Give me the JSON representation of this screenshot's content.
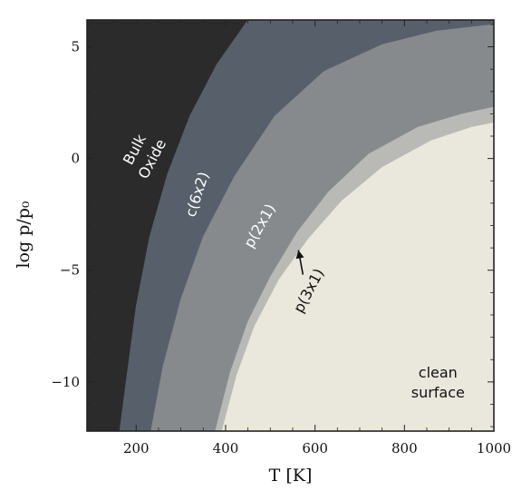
{
  "chart_data": {
    "type": "phase-diagram",
    "title": "",
    "xlabel": "T [K]",
    "ylabel": "log p/p₀",
    "xlim": [
      90,
      1000
    ],
    "ylim": [
      -12.2,
      6.2
    ],
    "x_ticks": [
      200,
      400,
      600,
      800,
      1000
    ],
    "y_ticks": [
      5,
      0,
      -5,
      -10
    ],
    "y_tick_labels": [
      "5",
      "0",
      "−5",
      "−10"
    ],
    "grid": false,
    "boundaries": [
      {
        "between": [
          "Bulk Oxide",
          "c(6x2)"
        ],
        "points": [
          [
            163,
            -12.2
          ],
          [
            180,
            -9.6
          ],
          [
            200,
            -6.6
          ],
          [
            230,
            -3.5
          ],
          [
            270,
            -0.7
          ],
          [
            320,
            1.9
          ],
          [
            380,
            4.2
          ],
          [
            450,
            6.2
          ]
        ]
      },
      {
        "between": [
          "c(6x2)",
          "p(2x1)"
        ],
        "points": [
          [
            233,
            -12.2
          ],
          [
            260,
            -9.3
          ],
          [
            300,
            -6.3
          ],
          [
            350,
            -3.5
          ],
          [
            420,
            -0.8
          ],
          [
            510,
            1.9
          ],
          [
            620,
            3.9
          ],
          [
            750,
            5.1
          ],
          [
            870,
            5.7
          ],
          [
            1000,
            6.0
          ]
        ]
      },
      {
        "between": [
          "p(2x1)",
          "p(3x1)"
        ],
        "points": [
          [
            377,
            -12.2
          ],
          [
            410,
            -9.6
          ],
          [
            450,
            -7.3
          ],
          [
            500,
            -5.3
          ],
          [
            560,
            -3.3
          ],
          [
            630,
            -1.5
          ],
          [
            720,
            0.2
          ],
          [
            830,
            1.4
          ],
          [
            930,
            2.0
          ],
          [
            1000,
            2.3
          ]
        ]
      },
      {
        "between": [
          "p(3x1)",
          "clean surface"
        ],
        "points": [
          [
            392,
            -12.2
          ],
          [
            425,
            -9.7
          ],
          [
            465,
            -7.5
          ],
          [
            520,
            -5.4
          ],
          [
            585,
            -3.6
          ],
          [
            660,
            -1.9
          ],
          [
            750,
            -0.4
          ],
          [
            860,
            0.8
          ],
          [
            950,
            1.4
          ],
          [
            1000,
            1.6
          ]
        ]
      }
    ],
    "regions": [
      {
        "name": "Bulk Oxide",
        "label_lines": [
          "Bulk",
          "Oxide"
        ],
        "color": "#2b2b2b",
        "text_color": "#ffffff",
        "label_at": [
          215,
          0.2
        ]
      },
      {
        "name": "c(6x2)",
        "label_lines": [
          "c(6x2)"
        ],
        "color": "#57606a",
        "text_color": "#ffffff",
        "label_at": [
          335,
          -1.6
        ]
      },
      {
        "name": "p(2x1)",
        "label_lines": [
          "p(2x1)"
        ],
        "color": "#868a8d",
        "text_color": "#ffffff",
        "label_at": [
          475,
          -3.0
        ]
      },
      {
        "name": "p(3x1)",
        "label_lines": [
          "p(3x1)"
        ],
        "color": "#b9bab5",
        "text_color": "#111111",
        "label_at": [
          585,
          -5.9
        ]
      },
      {
        "name": "clean surface",
        "label_lines": [
          "clean",
          "surface"
        ],
        "color": "#eae7dd",
        "text_color": "#111111",
        "label_at": [
          875,
          -10.0
        ]
      }
    ],
    "annotations": [
      {
        "type": "arrow",
        "from": [
          573,
          -5.2
        ],
        "to": [
          563,
          -4.1
        ],
        "points_to": "p(3x1)"
      }
    ]
  }
}
